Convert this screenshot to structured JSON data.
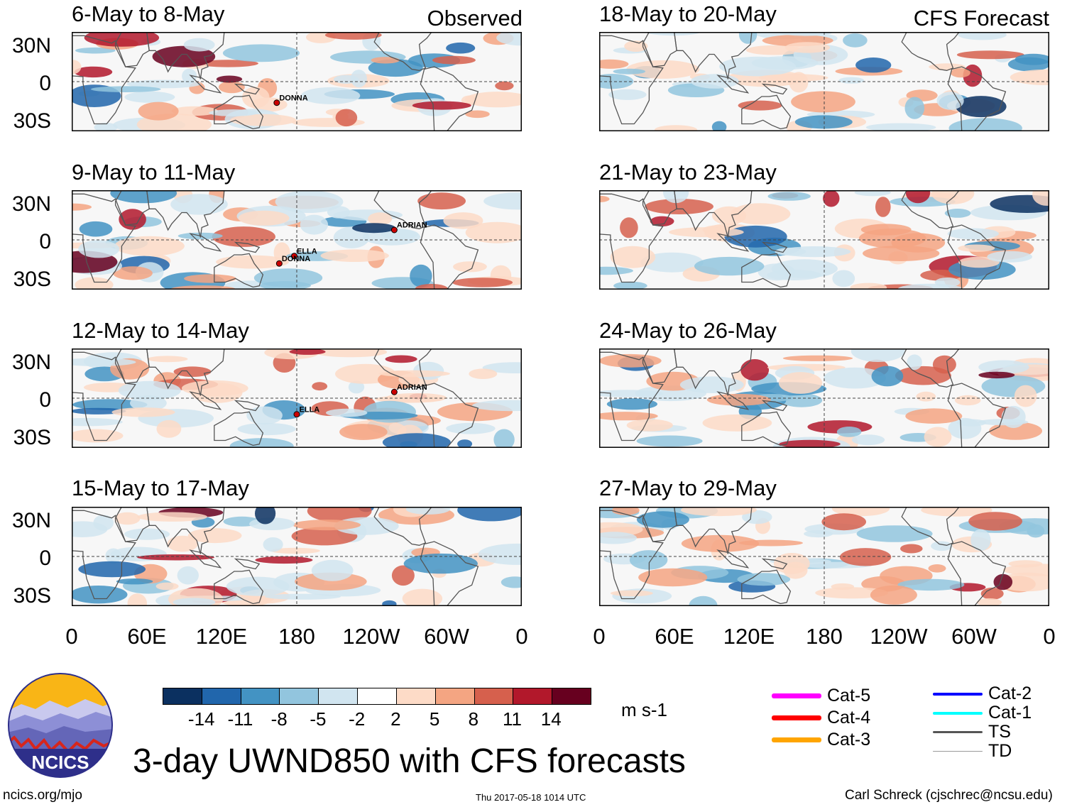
{
  "observed_label": "Observed",
  "forecast_label": "CFS Forecast",
  "lat_labels": [
    "30N",
    "0",
    "30S"
  ],
  "lon_labels": [
    "0",
    "60E",
    "120E",
    "180",
    "120W",
    "60W",
    "0"
  ],
  "panels": [
    {
      "title": "6-May to 8-May",
      "column": "observed",
      "storms": [
        "DONNA"
      ]
    },
    {
      "title": "9-May to 11-May",
      "column": "observed",
      "storms": [
        "ADRIAN",
        "ELLA",
        "DONNA"
      ]
    },
    {
      "title": "12-May to 14-May",
      "column": "observed",
      "storms": [
        "ADRIAN",
        "ELLA"
      ]
    },
    {
      "title": "15-May to 17-May",
      "column": "observed",
      "storms": []
    },
    {
      "title": "18-May to 20-May",
      "column": "forecast",
      "storms": []
    },
    {
      "title": "21-May to 23-May",
      "column": "forecast",
      "storms": []
    },
    {
      "title": "24-May to 26-May",
      "column": "forecast",
      "storms": []
    },
    {
      "title": "27-May to 29-May",
      "column": "forecast",
      "storms": []
    }
  ],
  "colorbar": {
    "colors": [
      "#0b3060",
      "#2166ac",
      "#4393c3",
      "#92c5de",
      "#d1e5f0",
      "#ffffff",
      "#fddbc7",
      "#f4a582",
      "#d6604d",
      "#b2182b",
      "#67001f"
    ],
    "ticks": [
      "-14",
      "-11",
      "-8",
      "-5",
      "-2",
      "2",
      "5",
      "8",
      "11",
      "14"
    ],
    "unit": "m s-1"
  },
  "legend": [
    {
      "label": "Cat-5",
      "color": "#ff00ff",
      "weight": "thick"
    },
    {
      "label": "Cat-4",
      "color": "#ff0000",
      "weight": "thick"
    },
    {
      "label": "Cat-3",
      "color": "#ffa500",
      "weight": "thick"
    },
    {
      "label": "Cat-2",
      "color": "#0000ff",
      "weight": "medium"
    },
    {
      "label": "Cat-1",
      "color": "#00ffff",
      "weight": "medium"
    },
    {
      "label": "TS",
      "color": "#555555",
      "weight": "medium"
    },
    {
      "label": "TD",
      "color": "#999999",
      "weight": "thin"
    }
  ],
  "title": "3-day UWND850 with CFS forecasts",
  "logo_text": "NCICS",
  "footer": {
    "url": "ncics.org/mjo",
    "timestamp": "Thu 2017-05-18 1014 UTC",
    "credit": "Carl Schreck (cjschrec@ncsu.edu)"
  }
}
